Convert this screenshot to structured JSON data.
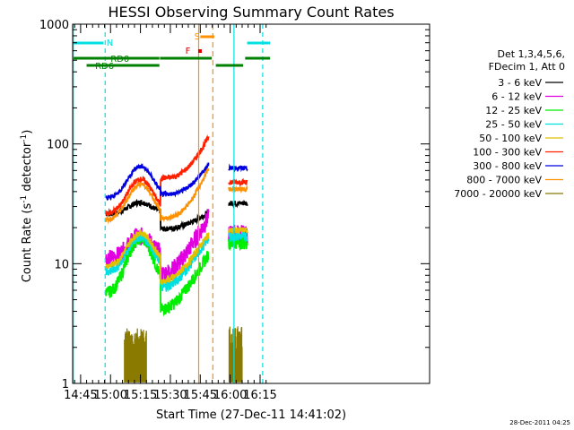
{
  "chart_data": {
    "type": "line",
    "title": "HESSI Observing Summary Count Rates",
    "xlabel": "Start Time (27-Dec-11 14:41:02)",
    "ylabel": "Count Rate (s",
    "ylabel_sup1": "-1",
    "ylabel_mid": " detector",
    "ylabel_sup2": "-1",
    "ylabel_end": ")",
    "y_scale": "log",
    "ylim": [
      1,
      1000
    ],
    "xlim_min": [
      881,
      1060
    ],
    "x_ticks": [
      {
        "t": 885,
        "label": "14:45"
      },
      {
        "t": 900,
        "label": "15:00"
      },
      {
        "t": 915,
        "label": "15:15"
      },
      {
        "t": 930,
        "label": "15:30"
      },
      {
        "t": 945,
        "label": "15:45"
      },
      {
        "t": 960,
        "label": "16:00"
      },
      {
        "t": 975,
        "label": "16:15"
      }
    ],
    "y_ticks": [
      {
        "v": 1,
        "label": "1"
      },
      {
        "v": 10,
        "label": "10"
      },
      {
        "v": 100,
        "label": "100"
      },
      {
        "v": 1000,
        "label": "1000"
      }
    ],
    "footer_timestamp": "28-Dec-2011 04:25",
    "legend_header": [
      "Det 1,3,4,5,6,",
      "FDecim 1, Att 0"
    ],
    "series": [
      {
        "name": "3 - 6 keV",
        "color": "#000000"
      },
      {
        "name": "6 - 12 keV",
        "color": "#e000e0"
      },
      {
        "name": "12 - 25 keV",
        "color": "#00ee00"
      },
      {
        "name": "25 - 50 keV",
        "color": "#00e0e0"
      },
      {
        "name": "50 - 100 keV",
        "color": "#e0c000"
      },
      {
        "name": "100 - 300 keV",
        "color": "#ff2000"
      },
      {
        "name": "300 - 800 keV",
        "color": "#0000e0"
      },
      {
        "name": "800 - 7000 keV",
        "color": "#ff9000"
      },
      {
        "name": "7000 - 20000 keV",
        "color": "#8a7a00"
      }
    ],
    "flags": [
      {
        "label": "N",
        "color": "#00e0e0"
      },
      {
        "label": "RD0",
        "color": "#008000"
      },
      {
        "label": "RD6",
        "color": "#008000"
      },
      {
        "label": "S",
        "color": "#ff9000"
      },
      {
        "label": "F",
        "color": "#e00000"
      }
    ]
  }
}
